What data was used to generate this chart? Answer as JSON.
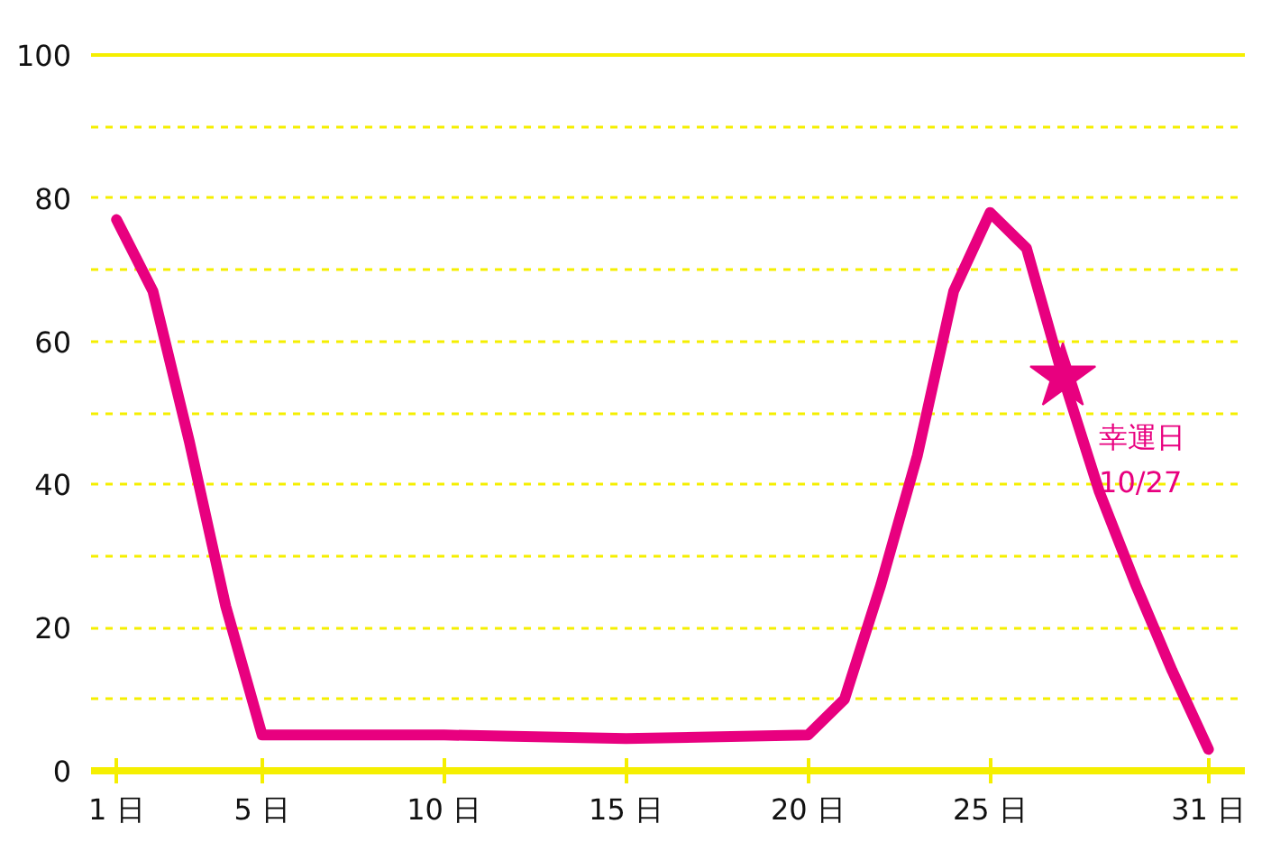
{
  "chart_data": {
    "type": "line",
    "xlim": [
      0.3,
      32
    ],
    "ylim": [
      0,
      100
    ],
    "xticks": [
      {
        "value": 1,
        "label": "1 日"
      },
      {
        "value": 5,
        "label": "5 日"
      },
      {
        "value": 10,
        "label": "10 日"
      },
      {
        "value": 15,
        "label": "15 日"
      },
      {
        "value": 20,
        "label": "20 日"
      },
      {
        "value": 25,
        "label": "25 日"
      },
      {
        "value": 31,
        "label": "31 日"
      }
    ],
    "yticks": [
      0,
      {
        "value": 10,
        "label": null
      },
      20,
      {
        "value": 30,
        "label": null
      },
      40,
      {
        "value": 50,
        "label": null
      },
      60,
      {
        "value": 70,
        "label": null
      },
      80,
      {
        "value": 90,
        "label": null
      },
      100
    ],
    "grid": "y",
    "series": [
      {
        "color": "#e8007f",
        "x": [
          1,
          2,
          3,
          4,
          5,
          10,
          15,
          20,
          21,
          22,
          23,
          24,
          25,
          26,
          27,
          28,
          29,
          30,
          31
        ],
        "values": [
          77,
          67,
          46,
          23,
          5,
          5,
          4.5,
          5,
          10,
          26,
          44,
          67,
          78,
          73,
          55,
          39,
          26,
          14,
          3
        ],
        "marker": "none",
        "line_style": "solid"
      },
      {
        "type": "scatter",
        "color": "#e8007f",
        "x": [
          27
        ],
        "values": [
          55
        ],
        "marker": "star"
      }
    ],
    "annotations": [
      {
        "text": "幸運日\n10/27",
        "x": 27,
        "y": 55
      }
    ]
  }
}
